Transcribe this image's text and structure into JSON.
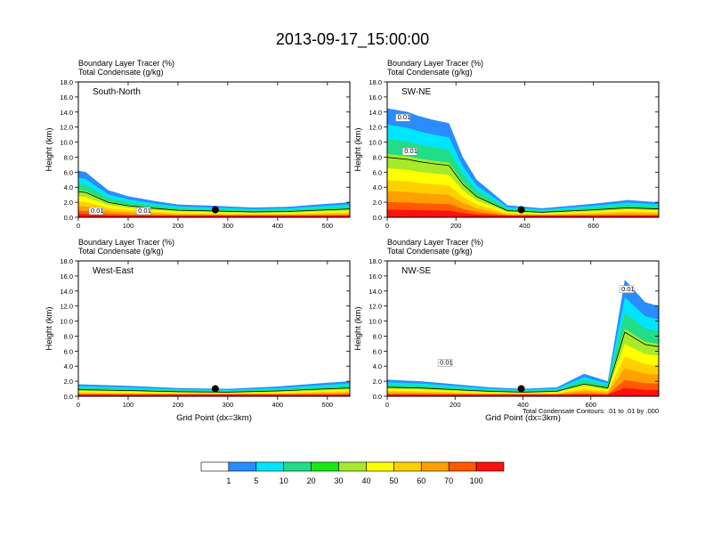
{
  "title": "2013-09-17_15:00:00",
  "colors": {
    "axis": "#000000",
    "background": "#ffffff",
    "palette": [
      "#ffffff",
      "#2a8cff",
      "#00e5ff",
      "#22dd88",
      "#18e818",
      "#a6ea2a",
      "#ffff00",
      "#ffd000",
      "#ffa000",
      "#ff5a00",
      "#ff1010"
    ]
  },
  "chart_data": [
    {
      "type": "heatmap",
      "panel": "South-North",
      "title_left": "Boundary Layer Tracer   (%)",
      "title_left2": "Total Condensate   (g/kg)",
      "ylabel": "Height (km)",
      "xlabel": "",
      "xlim": [
        0,
        545
      ],
      "ylim": [
        0,
        18
      ],
      "xticks": [
        0,
        100,
        200,
        300,
        400,
        500
      ],
      "yticks": [
        "0.0",
        "2.0",
        "4.0",
        "6.0",
        "8.0",
        "10.0",
        "12.0",
        "14.0",
        "16.0",
        "18.0"
      ],
      "marker": {
        "x": 275,
        "y": 1.0
      },
      "tracer_top_km": [
        [
          0,
          6.2
        ],
        [
          15,
          6.0
        ],
        [
          30,
          5.2
        ],
        [
          60,
          3.6
        ],
        [
          100,
          2.8
        ],
        [
          150,
          2.2
        ],
        [
          200,
          1.7
        ],
        [
          280,
          1.5
        ],
        [
          350,
          1.3
        ],
        [
          420,
          1.4
        ],
        [
          480,
          1.7
        ],
        [
          545,
          2.0
        ]
      ],
      "contour_labels": [
        {
          "text": "0.01",
          "x": 25,
          "y": 0.6
        },
        {
          "text": "0.01",
          "x": 120,
          "y": 0.6
        }
      ]
    },
    {
      "type": "heatmap",
      "panel": "SW-NE",
      "title_left": "Boundary Layer Tracer   (%)",
      "title_left2": "Total Condensate   (g/kg)",
      "ylabel": "Height (km)",
      "xlabel": "",
      "xlim": [
        0,
        790
      ],
      "ylim": [
        0,
        18
      ],
      "xticks": [
        0,
        200,
        400,
        600
      ],
      "yticks": [
        "0.0",
        "2.0",
        "4.0",
        "6.0",
        "8.0",
        "10.0",
        "12.0",
        "14.0",
        "16.0",
        "18.0"
      ],
      "marker": {
        "x": 390,
        "y": 1.0
      },
      "tracer_top_km": [
        [
          0,
          14.5
        ],
        [
          60,
          14.0
        ],
        [
          90,
          13.5
        ],
        [
          130,
          13.0
        ],
        [
          180,
          12.5
        ],
        [
          220,
          8.0
        ],
        [
          260,
          5.0
        ],
        [
          350,
          1.6
        ],
        [
          450,
          1.2
        ],
        [
          600,
          1.8
        ],
        [
          700,
          2.3
        ],
        [
          790,
          2.0
        ]
      ],
      "contour_labels": [
        {
          "text": "0.01",
          "x": 30,
          "y": 13.0
        },
        {
          "text": "0.01",
          "x": 50,
          "y": 8.5
        }
      ]
    },
    {
      "type": "heatmap",
      "panel": "West-East",
      "title_left": "Boundary Layer Tracer   (%)",
      "title_left2": "Total Condensate   (g/kg)",
      "ylabel": "Height (km)",
      "xlabel": "Grid Point (dx=3km)",
      "xlim": [
        0,
        545
      ],
      "ylim": [
        0,
        18
      ],
      "xticks": [
        0,
        100,
        200,
        300,
        400,
        500
      ],
      "yticks": [
        "0.0",
        "2.0",
        "4.0",
        "6.0",
        "8.0",
        "10.0",
        "12.0",
        "14.0",
        "16.0",
        "18.0"
      ],
      "marker": {
        "x": 275,
        "y": 1.0
      },
      "tracer_top_km": [
        [
          0,
          1.6
        ],
        [
          100,
          1.4
        ],
        [
          200,
          1.1
        ],
        [
          300,
          1.0
        ],
        [
          400,
          1.3
        ],
        [
          500,
          1.8
        ],
        [
          545,
          2.0
        ]
      ],
      "contour_labels": []
    },
    {
      "type": "heatmap",
      "panel": "NW-SE",
      "title_left": "Boundary Layer Tracer   (%)",
      "title_left2": "Total Condensate   (g/kg)",
      "ylabel": "Height (km)",
      "xlabel": "Grid Point (dx=3km)",
      "xlim": [
        0,
        800
      ],
      "ylim": [
        0,
        18
      ],
      "xticks": [
        0,
        200,
        400,
        600
      ],
      "yticks": [
        "0.0",
        "2.0",
        "4.0",
        "6.0",
        "8.0",
        "10.0",
        "12.0",
        "14.0",
        "16.0",
        "18.0"
      ],
      "marker": {
        "x": 395,
        "y": 1.0
      },
      "tracer_top_km": [
        [
          0,
          2.2
        ],
        [
          100,
          2.0
        ],
        [
          200,
          1.6
        ],
        [
          300,
          1.2
        ],
        [
          400,
          1.0
        ],
        [
          500,
          1.2
        ],
        [
          580,
          3.0
        ],
        [
          650,
          2.0
        ],
        [
          700,
          15.5
        ],
        [
          760,
          12.5
        ],
        [
          800,
          12.0
        ]
      ],
      "contour_labels": [
        {
          "text": "0.01",
          "x": 690,
          "y": 14.0
        },
        {
          "text": "0.01",
          "x": 155,
          "y": 4.2
        }
      ],
      "footnote": "Total Condensate Contours: .01 to .01 by .000"
    }
  ],
  "colorbar": {
    "levels": [
      "1",
      "5",
      "10",
      "20",
      "30",
      "40",
      "50",
      "60",
      "70",
      "100"
    ]
  }
}
